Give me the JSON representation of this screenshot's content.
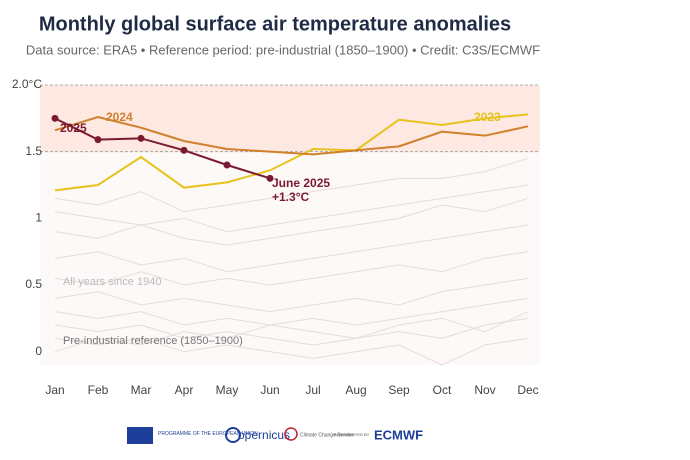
{
  "chart_data": {
    "type": "line",
    "title": "Monthly global surface air temperature anomalies",
    "subtitle": "Data source: ERA5 • Reference period: pre-industrial (1850–1900) • Credit: C3S/ECMWF",
    "categories": [
      "Jan",
      "Feb",
      "Mar",
      "Apr",
      "May",
      "Jun",
      "Jul",
      "Aug",
      "Sep",
      "Oct",
      "Nov",
      "Dec"
    ],
    "ylim": [
      -0.1,
      2.0
    ],
    "yticks": [
      0,
      0.5,
      1,
      1.5,
      {
        "value": 2,
        "label": "2.0°C"
      }
    ],
    "dashed_lines": [
      1.5,
      2
    ],
    "shaded_band": [
      1.5,
      2
    ],
    "series": [
      {
        "name": "2023",
        "color": "#e8c21e",
        "values": [
          1.21,
          1.25,
          1.46,
          1.23,
          1.27,
          1.36,
          1.52,
          1.51,
          1.74,
          1.7,
          1.75,
          1.78
        ]
      },
      {
        "name": "2024",
        "color": "#d0812b",
        "values": [
          1.66,
          1.76,
          1.68,
          1.58,
          1.52,
          1.5,
          1.48,
          1.51,
          1.54,
          1.65,
          1.62,
          1.69
        ]
      },
      {
        "name": "2025",
        "color": "#7a1a30",
        "markers": true,
        "values": [
          1.75,
          1.59,
          1.6,
          1.51,
          1.4,
          1.3,
          null,
          null,
          null,
          null,
          null,
          null
        ]
      }
    ],
    "background_color": "#e6dcd9",
    "background_lines": [
      [
        1.05,
        1.0,
        0.95,
        1.0,
        0.9,
        0.95,
        1.0,
        1.05,
        1.1,
        1.15,
        1.2,
        1.25
      ],
      [
        0.9,
        0.85,
        0.95,
        0.85,
        0.8,
        0.85,
        0.9,
        0.95,
        1.0,
        1.1,
        1.05,
        1.15
      ],
      [
        0.7,
        0.75,
        0.65,
        0.7,
        0.6,
        0.65,
        0.7,
        0.75,
        0.8,
        0.85,
        0.9,
        0.95
      ],
      [
        0.55,
        0.5,
        0.6,
        0.5,
        0.55,
        0.5,
        0.55,
        0.6,
        0.65,
        0.6,
        0.7,
        0.75
      ],
      [
        0.4,
        0.45,
        0.35,
        0.4,
        0.35,
        0.3,
        0.35,
        0.4,
        0.35,
        0.45,
        0.5,
        0.55
      ],
      [
        0.3,
        0.25,
        0.3,
        0.2,
        0.25,
        0.2,
        0.25,
        0.2,
        0.25,
        0.3,
        0.35,
        0.4
      ],
      [
        0.2,
        0.15,
        0.2,
        0.1,
        0.15,
        0.1,
        0.05,
        0.1,
        0.15,
        0.1,
        0.2,
        0.25
      ],
      [
        0.1,
        0.05,
        0.1,
        0.0,
        0.05,
        0.0,
        -0.05,
        0.0,
        0.05,
        -0.1,
        0.05,
        0.1
      ],
      [
        1.15,
        1.1,
        1.2,
        1.05,
        1.1,
        1.15,
        1.2,
        1.25,
        1.3,
        1.3,
        1.35,
        1.45
      ],
      [
        0.0,
        0.1,
        0.05,
        0.15,
        0.1,
        0.2,
        0.15,
        0.1,
        0.2,
        0.25,
        0.15,
        0.3
      ]
    ],
    "annotations": {
      "last_point_date": "June 2025",
      "last_point_value": "+1.3°C",
      "all_years": "All years since 1940",
      "reference": "Pre-industrial reference (1850–1900)"
    }
  },
  "footer": {
    "eu": "PROGRAMME OF THE EUROPEAN UNION",
    "copernicus": "opernicus",
    "c3s": "Climate Change Service",
    "implemented": "IMPLEMENTED BY",
    "ecmwf": "ECMWF"
  }
}
